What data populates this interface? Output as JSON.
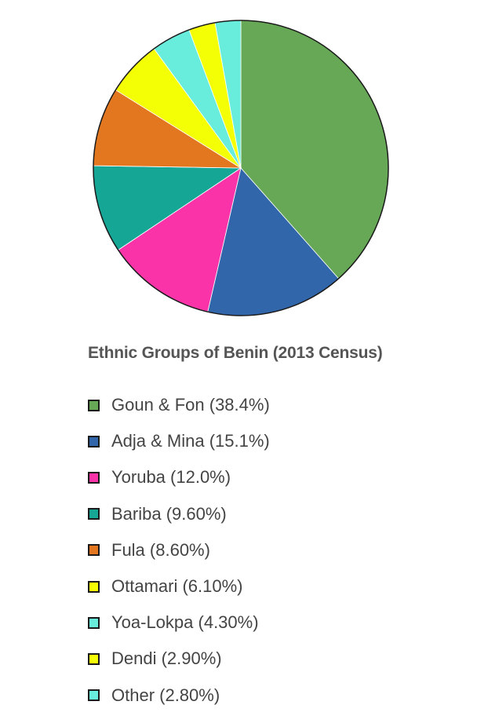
{
  "chart_data": {
    "type": "pie",
    "title": "Ethnic Groups of Benin (2013 Census)",
    "slices": [
      {
        "label": "Goun & Fon (38.4%)",
        "value": 38.4,
        "color": "#67a856"
      },
      {
        "label": "Adja & Mina (15.1%)",
        "value": 15.1,
        "color": "#3266ab"
      },
      {
        "label": "Yoruba (12.0%)",
        "value": 12.0,
        "color": "#fb33a9"
      },
      {
        "label": "Bariba (9.60%)",
        "value": 9.6,
        "color": "#15a695"
      },
      {
        "label": "Fula (8.60%)",
        "value": 8.6,
        "color": "#e3771f"
      },
      {
        "label": "Ottamari (6.10%)",
        "value": 6.1,
        "color": "#f4fe04"
      },
      {
        "label": "Yoa-Lokpa (4.30%)",
        "value": 4.3,
        "color": "#68eddd"
      },
      {
        "label": "Dendi (2.90%)",
        "value": 2.9,
        "color": "#f4fe04"
      },
      {
        "label": "Other (2.80%)",
        "value": 2.8,
        "color": "#68eddd"
      }
    ],
    "legend_position": "bottom",
    "start_angle": "top",
    "direction": "clockwise"
  }
}
